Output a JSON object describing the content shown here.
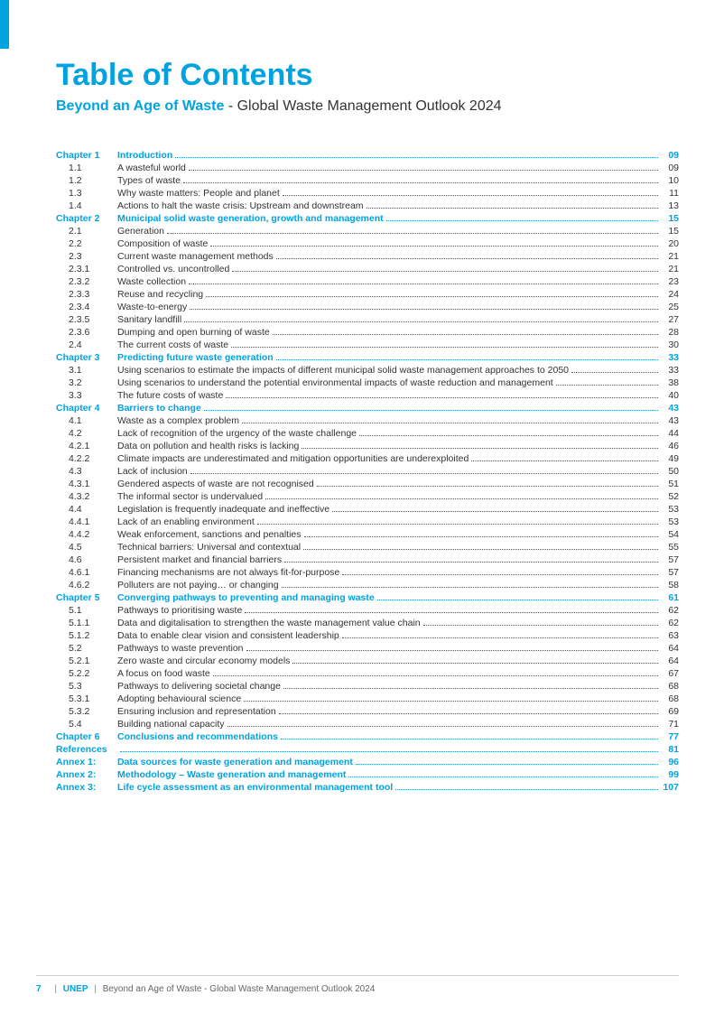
{
  "colors": {
    "accent": "#00a3e0",
    "text": "#333333",
    "leader": "#555555"
  },
  "title": "Table of Contents",
  "subtitle_bold": "Beyond an Age of Waste",
  "subtitle_rest": " - Global Waste Management Outlook 2024",
  "footer": {
    "page": "7",
    "org": "UNEP",
    "title": "Beyond an Age of Waste - Global Waste Management Outlook 2024"
  },
  "toc": [
    {
      "type": "chapter",
      "num": "Chapter 1",
      "label": "Introduction",
      "page": "09"
    },
    {
      "type": "item",
      "num": "1.1",
      "label": "A wasteful world",
      "page": "09"
    },
    {
      "type": "item",
      "num": "1.2",
      "label": "Types of waste",
      "page": "10"
    },
    {
      "type": "item",
      "num": "1.3",
      "label": "Why waste matters: People and planet",
      "page": "11"
    },
    {
      "type": "item",
      "num": "1.4",
      "label": "Actions to halt the waste crisis: Upstream and downstream",
      "page": "13"
    },
    {
      "type": "chapter",
      "num": "Chapter 2",
      "label": "Municipal solid waste generation, growth and management",
      "page": "15"
    },
    {
      "type": "item",
      "num": "2.1",
      "label": "Generation",
      "page": "15"
    },
    {
      "type": "item",
      "num": "2.2",
      "label": "Composition of waste",
      "page": "20"
    },
    {
      "type": "item",
      "num": "2.3",
      "label": "Current waste management methods",
      "page": "21"
    },
    {
      "type": "item",
      "num": "2.3.1",
      "label": "Controlled vs. uncontrolled",
      "page": "21"
    },
    {
      "type": "item",
      "num": "2.3.2",
      "label": "Waste collection",
      "page": "23"
    },
    {
      "type": "item",
      "num": "2.3.3",
      "label": "Reuse and recycling",
      "page": "24"
    },
    {
      "type": "item",
      "num": "2.3.4",
      "label": "Waste-to-energy",
      "page": "25"
    },
    {
      "type": "item",
      "num": "2.3.5",
      "label": "Sanitary landfill",
      "page": "27"
    },
    {
      "type": "item",
      "num": "2.3.6",
      "label": "Dumping and open burning of waste",
      "page": "28"
    },
    {
      "type": "item",
      "num": "2.4",
      "label": "The current costs of waste",
      "page": "30"
    },
    {
      "type": "chapter",
      "num": "Chapter 3",
      "label": "Predicting future waste generation",
      "page": "33"
    },
    {
      "type": "item",
      "num": "3.1",
      "label": "Using scenarios to estimate the impacts of different municipal solid waste management approaches to 2050",
      "page": "33"
    },
    {
      "type": "item",
      "num": "3.2",
      "label": "Using scenarios to understand the potential environmental impacts of waste reduction and management",
      "page": "38"
    },
    {
      "type": "item",
      "num": "3.3",
      "label": "The future costs of waste",
      "page": "40"
    },
    {
      "type": "chapter",
      "num": "Chapter 4",
      "label": "Barriers to change",
      "page": "43"
    },
    {
      "type": "item",
      "num": "4.1",
      "label": "Waste as a complex problem",
      "page": "43"
    },
    {
      "type": "item",
      "num": "4.2",
      "label": "Lack of recognition of the urgency of the waste challenge",
      "page": "44"
    },
    {
      "type": "item",
      "num": "4.2.1",
      "label": "Data on pollution and health risks is lacking",
      "page": "46"
    },
    {
      "type": "item",
      "num": "4.2.2",
      "label": "Climate impacts are underestimated and mitigation opportunities are underexploited",
      "page": "49"
    },
    {
      "type": "item",
      "num": "4.3",
      "label": "Lack of inclusion",
      "page": "50"
    },
    {
      "type": "item",
      "num": "4.3.1",
      "label": "Gendered aspects of waste are not recognised",
      "page": "51"
    },
    {
      "type": "item",
      "num": "4.3.2",
      "label": "The informal sector is undervalued",
      "page": "52"
    },
    {
      "type": "item",
      "num": "4.4",
      "label": "Legislation is frequently inadequate and ineffective",
      "page": "53"
    },
    {
      "type": "item",
      "num": "4.4.1",
      "label": "Lack of an enabling environment",
      "page": "53"
    },
    {
      "type": "item",
      "num": "4.4.2",
      "label": "Weak enforcement, sanctions and penalties",
      "page": "54"
    },
    {
      "type": "item",
      "num": "4.5",
      "label": "Technical barriers: Universal and contextual",
      "page": "55"
    },
    {
      "type": "item",
      "num": "4.6",
      "label": "Persistent market and financial barriers",
      "page": "57"
    },
    {
      "type": "item",
      "num": "4.6.1",
      "label": "Financing mechanisms are not always fit-for-purpose",
      "page": "57"
    },
    {
      "type": "item",
      "num": "4.6.2",
      "label": "Polluters are not paying… or changing",
      "page": "58"
    },
    {
      "type": "chapter",
      "num": "Chapter 5",
      "label": "Converging pathways to preventing and managing waste",
      "page": "61"
    },
    {
      "type": "item",
      "num": "5.1",
      "label": "Pathways to prioritising waste",
      "page": "62"
    },
    {
      "type": "item",
      "num": "5.1.1",
      "label": "Data and digitalisation to strengthen the waste management value chain",
      "page": "62"
    },
    {
      "type": "item",
      "num": "5.1.2",
      "label": "Data to enable clear vision and consistent leadership",
      "page": "63"
    },
    {
      "type": "item",
      "num": "5.2",
      "label": "Pathways to waste prevention",
      "page": "64"
    },
    {
      "type": "item",
      "num": "5.2.1",
      "label": "Zero waste and circular economy models",
      "page": "64"
    },
    {
      "type": "item",
      "num": "5.2.2",
      "label": "A focus on food waste",
      "page": "67"
    },
    {
      "type": "item",
      "num": "5.3",
      "label": "Pathways to delivering societal change",
      "page": "68"
    },
    {
      "type": "item",
      "num": "5.3.1",
      "label": "Adopting behavioural science",
      "page": "68"
    },
    {
      "type": "item",
      "num": "5.3.2",
      "label": "Ensuring inclusion and representation",
      "page": "69"
    },
    {
      "type": "item",
      "num": "5.4",
      "label": "Building national capacity",
      "page": "71"
    },
    {
      "type": "chapter",
      "num": "Chapter 6",
      "label": "Conclusions and recommendations",
      "page": "77"
    },
    {
      "type": "chapter",
      "num": "References",
      "label": "",
      "page": "81"
    },
    {
      "type": "chapter",
      "num": "Annex 1:",
      "label": "Data sources for waste generation and management",
      "page": "96"
    },
    {
      "type": "chapter",
      "num": "Annex 2:",
      "label": "Methodology – Waste generation and management",
      "page": "99"
    },
    {
      "type": "chapter",
      "num": "Annex 3:",
      "label": "Life cycle assessment as an environmental management tool",
      "page": "107"
    }
  ]
}
